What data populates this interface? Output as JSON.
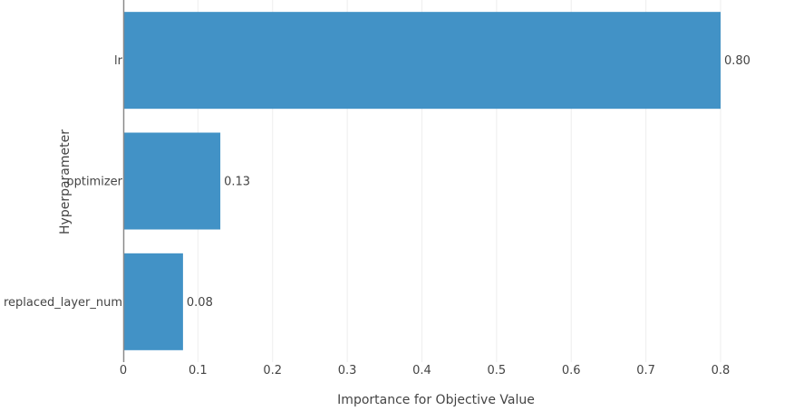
{
  "chart_data": {
    "type": "bar",
    "orientation": "horizontal",
    "categories": [
      "lr",
      "optimizer",
      "replaced_layer_num"
    ],
    "values": [
      0.8,
      0.13,
      0.08
    ],
    "data_labels": [
      "0.80",
      "0.13",
      "0.08"
    ],
    "title": "",
    "xlabel": "Importance for Objective Value",
    "ylabel": "Hyperparameter",
    "xlim": [
      0,
      0.8
    ],
    "xticks": [
      0,
      0.1,
      0.2,
      0.3,
      0.4,
      0.5,
      0.6,
      0.7,
      0.8
    ],
    "xtick_labels": [
      "0",
      "0.1",
      "0.2",
      "0.3",
      "0.4",
      "0.5",
      "0.6",
      "0.7",
      "0.8"
    ],
    "grid": true,
    "colors": {
      "bar": "#4292c6",
      "grid": "#eeeeee",
      "axis_line": "#444444",
      "text": "#444444"
    }
  }
}
